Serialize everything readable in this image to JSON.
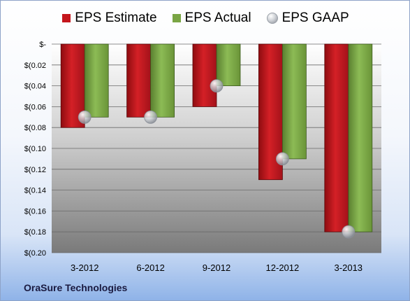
{
  "company": "OraSure Technologies",
  "colors": {
    "estimate": "#c4161c",
    "actual": "#7aa544",
    "gaap": "#b8bcc4"
  },
  "chart_data": {
    "type": "bar",
    "categories": [
      "3-2012",
      "6-2012",
      "9-2012",
      "12-2012",
      "3-2013"
    ],
    "series": [
      {
        "name": "EPS Estimate",
        "values": [
          -0.08,
          -0.07,
          -0.06,
          -0.13,
          -0.18
        ]
      },
      {
        "name": "EPS Actual",
        "values": [
          -0.07,
          -0.07,
          -0.04,
          -0.11,
          -0.18
        ]
      },
      {
        "name": "EPS GAAP",
        "values": [
          -0.07,
          -0.07,
          -0.04,
          -0.11,
          -0.18
        ]
      }
    ],
    "ylim": [
      -0.2,
      0
    ],
    "yticks": [
      {
        "value": 0,
        "label": "$-"
      },
      {
        "value": -0.02,
        "label": "$(0.02"
      },
      {
        "value": -0.04,
        "label": "$(0.04"
      },
      {
        "value": -0.06,
        "label": "$(0.06"
      },
      {
        "value": -0.08,
        "label": "$(0.08"
      },
      {
        "value": -0.1,
        "label": "$(0.10"
      },
      {
        "value": -0.12,
        "label": "$(0.12"
      },
      {
        "value": -0.14,
        "label": "$(0.14"
      },
      {
        "value": -0.16,
        "label": "$(0.16"
      },
      {
        "value": -0.18,
        "label": "$(0.18"
      },
      {
        "value": -0.2,
        "label": "$(0.20"
      }
    ],
    "grid": true,
    "legend_position": "top"
  }
}
